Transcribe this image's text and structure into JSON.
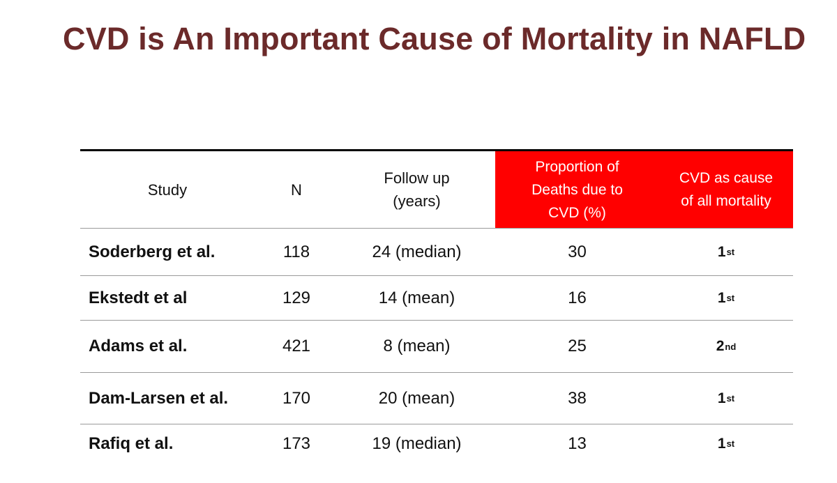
{
  "slide": {
    "title": "CVD is An Important Cause of Mortality in NAFLD"
  },
  "table": {
    "headers": {
      "study": "Study",
      "n": "N",
      "follow_up_line1": "Follow up",
      "follow_up_line2": "(years)",
      "proportion_line1": "Proportion of",
      "proportion_line2": "Deaths due to",
      "proportion_line3": "CVD (%)",
      "rank_line1": "CVD as cause",
      "rank_line2": "of all mortality"
    },
    "header_highlight_color": "#ff0000",
    "title_color": "#6b2a2a",
    "rows": [
      {
        "study": "Soderberg et al.",
        "n": "118",
        "follow_up": "24 (median)",
        "proportion": "30",
        "rank_num": "1",
        "rank_suffix": "st"
      },
      {
        "study": "Ekstedt et al",
        "n": "129",
        "follow_up": "14 (mean)",
        "proportion": "16",
        "rank_num": "1",
        "rank_suffix": "st"
      },
      {
        "study": "Adams et al.",
        "n": "421",
        "follow_up": "8 (mean)",
        "proportion": "25",
        "rank_num": "2",
        "rank_suffix": "nd"
      },
      {
        "study": "Dam-Larsen et al.",
        "n": "170",
        "follow_up": "20 (mean)",
        "proportion": "38",
        "rank_num": "1",
        "rank_suffix": "st"
      },
      {
        "study": "Rafiq et al.",
        "n": "173",
        "follow_up": "19 (median)",
        "proportion": "13",
        "rank_num": "1",
        "rank_suffix": "st"
      }
    ]
  }
}
